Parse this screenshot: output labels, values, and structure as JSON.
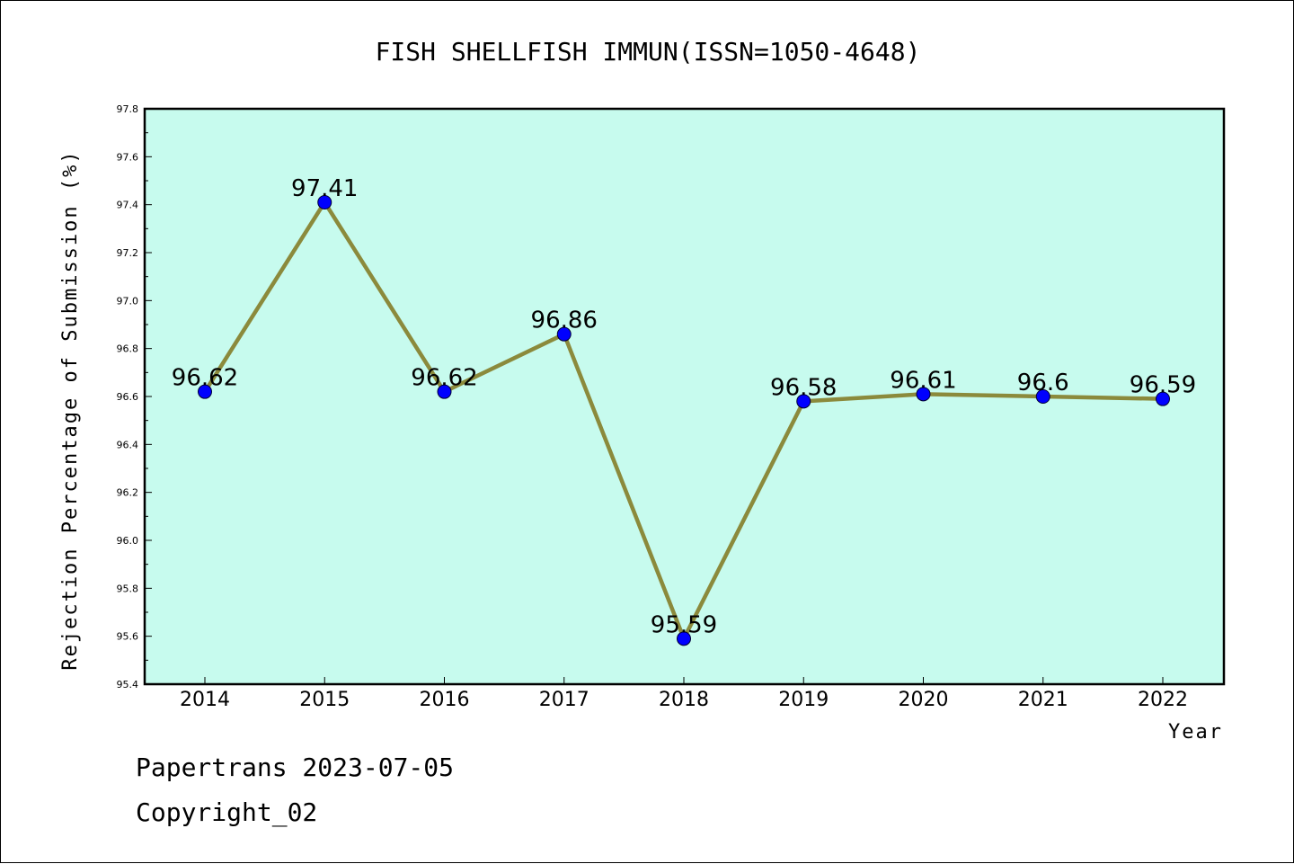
{
  "chart_data": {
    "type": "line",
    "title": "FISH SHELLFISH IMMUN(ISSN=1050-4648)",
    "xlabel": "Year",
    "ylabel": "Rejection Percentage of Submission (%)",
    "categories": [
      "2014",
      "2015",
      "2016",
      "2017",
      "2018",
      "2019",
      "2020",
      "2021",
      "2022"
    ],
    "series": [
      {
        "values": [
          96.62,
          97.41,
          96.62,
          96.86,
          95.59,
          96.58,
          96.61,
          96.6,
          96.59
        ],
        "labels": [
          "96.62",
          "97.41",
          "96.62",
          "96.86",
          "95.59",
          "96.58",
          "96.61",
          "96.6",
          "96.59"
        ]
      }
    ],
    "ylim": [
      95.4,
      97.8
    ],
    "yticks": [
      "95.4",
      "95.6",
      "95.8",
      "96.0",
      "96.2",
      "96.4",
      "96.6",
      "96.8",
      "97.0",
      "97.2",
      "97.4",
      "97.6",
      "97.8"
    ],
    "grid": false,
    "colors": {
      "plot_background": "#c7fbee",
      "line": "#8b8a3c",
      "marker": "#0000ff"
    }
  },
  "footer": {
    "line1": "Papertrans 2023-07-05",
    "line2": "Copyright_02"
  }
}
